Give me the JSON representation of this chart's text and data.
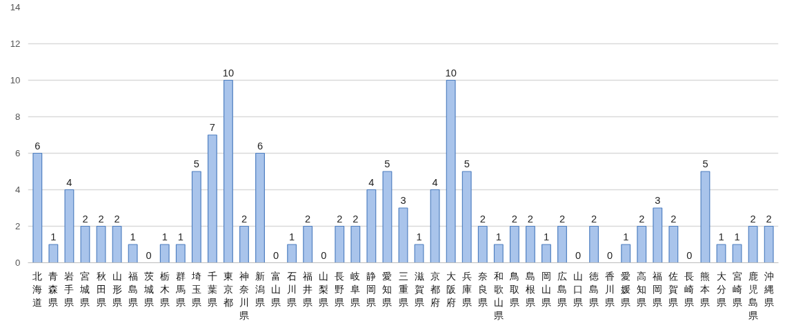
{
  "chart_data": {
    "type": "bar",
    "categories": [
      "北海道",
      "青森県",
      "岩手県",
      "宮城県",
      "秋田県",
      "山形県",
      "福島県",
      "茨城県",
      "栃木県",
      "群馬県",
      "埼玉県",
      "千葉県",
      "東京都",
      "神奈川県",
      "新潟県",
      "富山県",
      "石川県",
      "福井県",
      "山梨県",
      "長野県",
      "岐阜県",
      "静岡県",
      "愛知県",
      "三重県",
      "滋賀県",
      "京都府",
      "大阪府",
      "兵庫県",
      "奈良県",
      "和歌山県",
      "鳥取県",
      "島根県",
      "岡山県",
      "広島県",
      "山口県",
      "徳島県",
      "香川県",
      "愛媛県",
      "高知県",
      "福岡県",
      "佐賀県",
      "長崎県",
      "熊本県",
      "大分県",
      "宮崎県",
      "鹿児島県",
      "沖縄県"
    ],
    "values": [
      6,
      1,
      4,
      2,
      2,
      2,
      1,
      0,
      1,
      1,
      5,
      7,
      10,
      2,
      6,
      0,
      1,
      2,
      0,
      2,
      2,
      4,
      5,
      3,
      1,
      4,
      10,
      5,
      2,
      1,
      2,
      2,
      1,
      2,
      0,
      2,
      0,
      1,
      2,
      3,
      2,
      0,
      5,
      1,
      1,
      2,
      2
    ],
    "color": "#a9c4eb",
    "ylim": [
      0,
      14
    ],
    "yticks": [
      0,
      2,
      4,
      6,
      8,
      10,
      12,
      14
    ],
    "grid": "y",
    "data_labels": true
  }
}
